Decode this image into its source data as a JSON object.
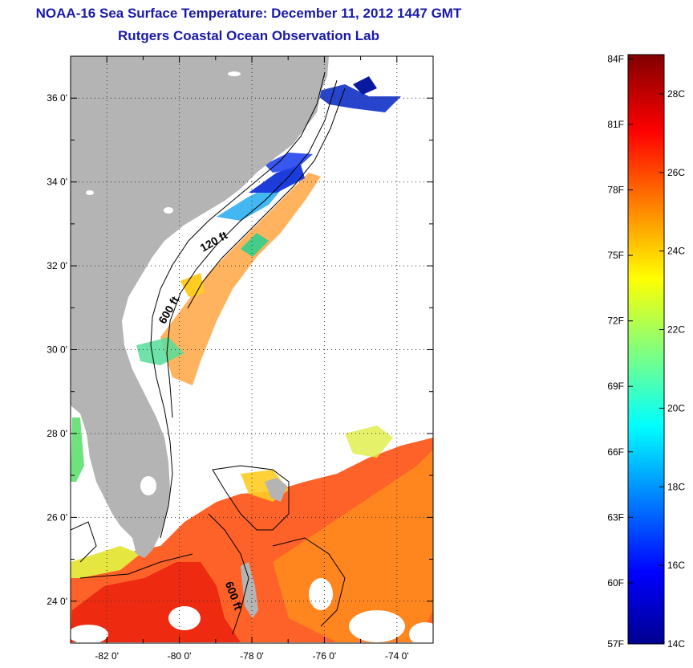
{
  "header": {
    "title": "NOAA-16 Sea Surface Temperature:  December 11, 2012 1447 GMT",
    "subtitle": "Rutgers Coastal Ocean Observation Lab"
  },
  "map": {
    "lon_range": [
      -83.0,
      -73.0
    ],
    "lat_range": [
      23.0,
      37.0
    ],
    "lon_ticks": [
      {
        "value": -82,
        "label": "-82 0'"
      },
      {
        "value": -80,
        "label": "-80 0'"
      },
      {
        "value": -78,
        "label": "-78 0'"
      },
      {
        "value": -76,
        "label": "-76 0'"
      },
      {
        "value": -74,
        "label": "-74 0'"
      }
    ],
    "lat_ticks": [
      {
        "value": 24,
        "label": "24 0'"
      },
      {
        "value": 26,
        "label": "26 0'"
      },
      {
        "value": 28,
        "label": "28 0'"
      },
      {
        "value": 30,
        "label": "30 0'"
      },
      {
        "value": 32,
        "label": "32 0'"
      },
      {
        "value": 34,
        "label": "34 0'"
      },
      {
        "value": 36,
        "label": "36 0'"
      }
    ],
    "contour_labels": [
      {
        "text": "120 ft",
        "lon": -79.0,
        "lat": 32.5
      },
      {
        "text": "600 ft",
        "lon": -80.2,
        "lat": 30.9
      },
      {
        "text": "600 ft",
        "lon": -78.6,
        "lat": 24.1
      }
    ],
    "land_color": "#b4b4b4",
    "grid": true
  },
  "colorbar": {
    "range_c": [
      14,
      29
    ],
    "f_labels": [
      "84F",
      "81F",
      "78F",
      "75F",
      "72F",
      "69F",
      "66F",
      "63F",
      "60F",
      "57F"
    ],
    "c_labels": [
      "28C",
      "26C",
      "24C",
      "22C",
      "20C",
      "18C",
      "16C",
      "14C"
    ],
    "colors": [
      "#00008f",
      "#0000ff",
      "#00ffff",
      "#ffff00",
      "#ff0000",
      "#800000"
    ]
  }
}
